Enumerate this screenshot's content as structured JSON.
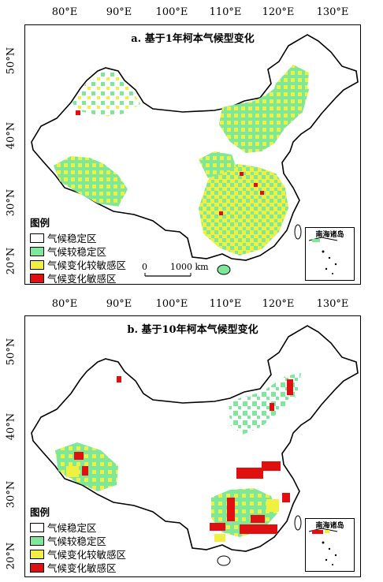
{
  "lon_ticks": [
    "80°E",
    "90°E",
    "100°E",
    "110°E",
    "120°E",
    "130°E"
  ],
  "lat_ticks": [
    "50°N",
    "40°N",
    "30°N",
    "20°N"
  ],
  "panels": {
    "a": {
      "title": "a. 基于1年柯本气候型变化",
      "legend": {
        "title": "图例",
        "items": [
          "气候稳定区",
          "气候较稳定区",
          "气候变化较敏感区",
          "气候变化敏感区"
        ]
      },
      "scale": {
        "zero": "0",
        "length": "1000 km"
      },
      "inset_label": "南海诸岛"
    },
    "b": {
      "title": "b. 基于10年柯本气候型变化",
      "legend": {
        "title": "图例",
        "items": [
          "气候稳定区",
          "气候较稳定区",
          "气候变化较敏感区",
          "气候变化敏感区"
        ]
      },
      "inset_label": "南海诸岛"
    }
  },
  "colors": {
    "stable": "#ffffff",
    "relatively_stable": "#7de89a",
    "relatively_sensitive": "#f0f040",
    "sensitive": "#e01010"
  }
}
